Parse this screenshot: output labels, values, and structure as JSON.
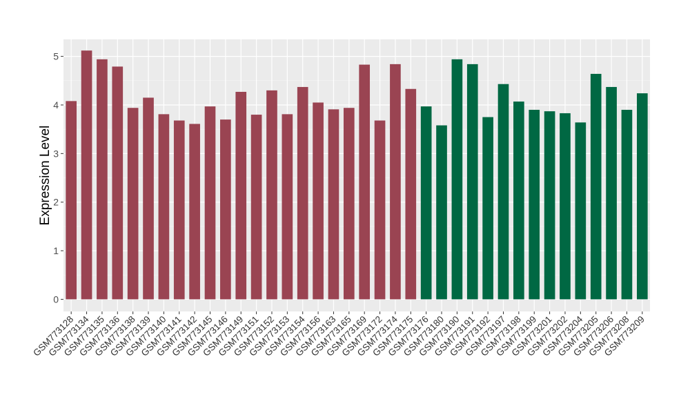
{
  "chart_data": {
    "type": "bar",
    "ylabel": "Expression Level",
    "xlabel": "",
    "ylim": [
      -0.25,
      5.35
    ],
    "yticks": [
      0,
      1,
      2,
      3,
      4,
      5
    ],
    "grid": true,
    "background": "#EBEBEB",
    "categories": [
      "GSM773128",
      "GSM773134",
      "GSM773135",
      "GSM773136",
      "GSM773138",
      "GSM773139",
      "GSM773140",
      "GSM773141",
      "GSM773142",
      "GSM773145",
      "GSM773146",
      "GSM773149",
      "GSM773151",
      "GSM773152",
      "GSM773153",
      "GSM773154",
      "GSM773156",
      "GSM773163",
      "GSM773165",
      "GSM773169",
      "GSM773172",
      "GSM773174",
      "GSM773175",
      "GSM773176",
      "GSM773180",
      "GSM773190",
      "GSM773191",
      "GSM773192",
      "GSM773197",
      "GSM773198",
      "GSM773199",
      "GSM773201",
      "GSM773202",
      "GSM773204",
      "GSM773205",
      "GSM773206",
      "GSM773208",
      "GSM773209"
    ],
    "values": [
      4.08,
      5.12,
      4.94,
      4.79,
      3.94,
      4.15,
      3.81,
      3.68,
      3.61,
      3.97,
      3.7,
      4.27,
      3.8,
      4.3,
      3.81,
      4.37,
      4.05,
      3.91,
      3.94,
      4.83,
      3.68,
      4.84,
      4.33,
      3.97,
      3.58,
      4.94,
      4.84,
      3.75,
      4.43,
      4.07,
      3.9,
      3.87,
      3.83,
      3.64,
      4.64,
      4.37,
      3.9,
      4.24
    ],
    "group_sizes": [
      23,
      15
    ],
    "colors": [
      "#9A4452",
      "#006843"
    ]
  }
}
